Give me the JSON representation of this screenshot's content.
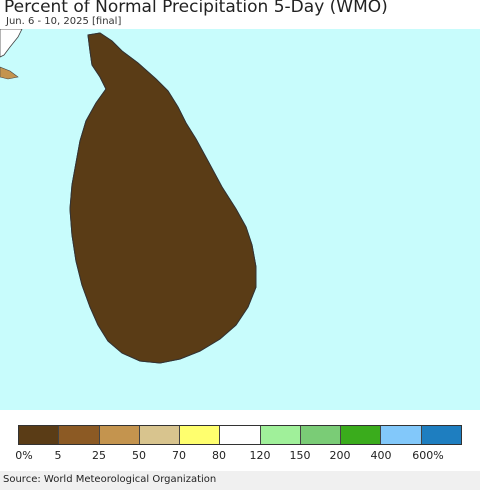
{
  "header": {
    "title": "Percent of Normal Precipitation 5-Day (WMO)",
    "subtitle": "Jun. 6 - 10, 2025 [final]"
  },
  "legend": {
    "colors": [
      "#5a3c16",
      "#8c5a24",
      "#c4944e",
      "#d8c48e",
      "#ffff6e",
      "#ffffff",
      "#a0f09a",
      "#7acc76",
      "#3aac1c",
      "#82c8fa",
      "#1e7ec0"
    ],
    "labels": [
      "0%",
      "5",
      "25",
      "50",
      "70",
      "80",
      "120",
      "150",
      "200",
      "400",
      "600%"
    ]
  },
  "footer": {
    "source": "Source: World Meteorological Organization"
  }
}
